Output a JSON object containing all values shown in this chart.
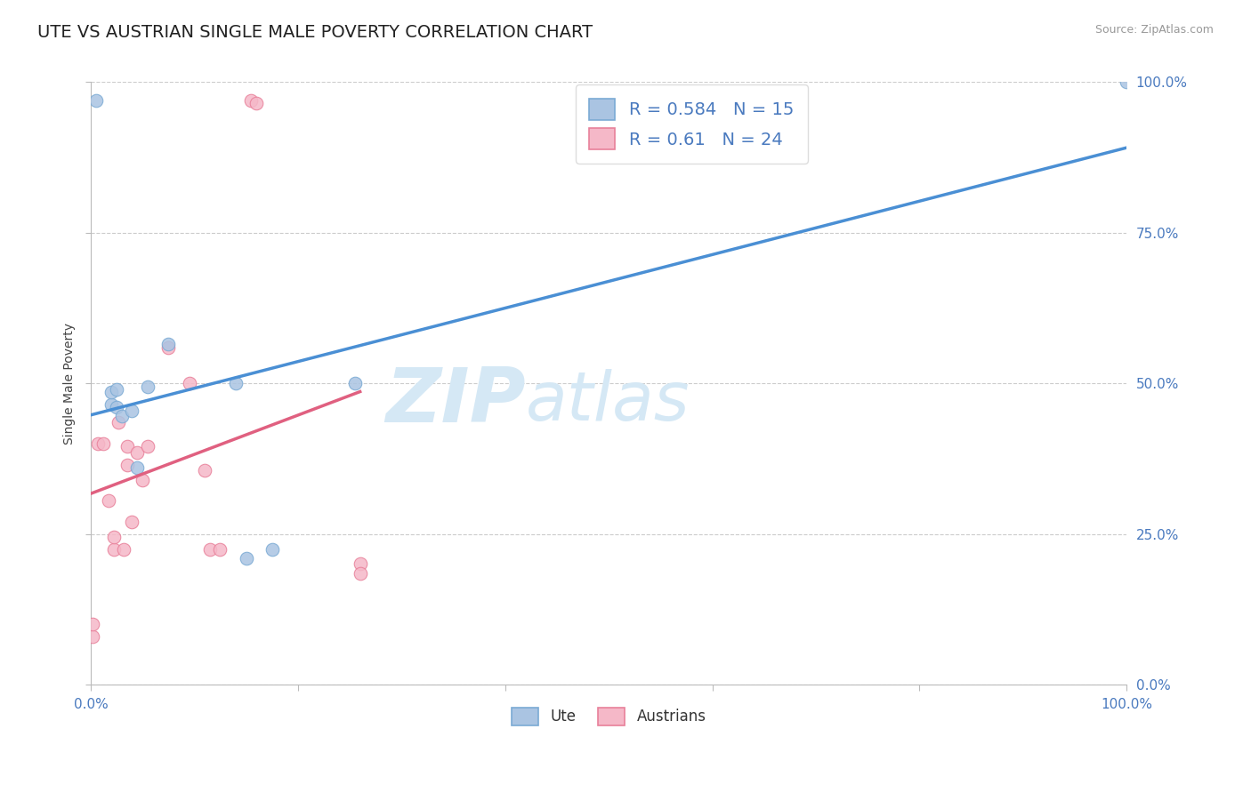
{
  "title": "UTE VS AUSTRIAN SINGLE MALE POVERTY CORRELATION CHART",
  "source": "Source: ZipAtlas.com",
  "ylabel": "Single Male Poverty",
  "xlim": [
    0.0,
    1.0
  ],
  "ylim": [
    0.0,
    1.0
  ],
  "ytick_labels": [
    "0.0%",
    "25.0%",
    "50.0%",
    "75.0%",
    "100.0%"
  ],
  "ytick_positions": [
    0.0,
    0.25,
    0.5,
    0.75,
    1.0
  ],
  "ute_color": "#aac4e2",
  "ute_edge_color": "#7aaad4",
  "austrians_color": "#f5b8c8",
  "austrians_edge_color": "#e8809a",
  "ute_line_color": "#4a8fd4",
  "austrians_line_color": "#e06080",
  "watermark_color": "#d5e8f5",
  "ute_R": 0.584,
  "ute_N": 15,
  "austrians_R": 0.61,
  "austrians_N": 24,
  "ute_x": [
    0.005,
    0.02,
    0.02,
    0.025,
    0.025,
    0.03,
    0.04,
    0.045,
    0.055,
    0.075,
    0.14,
    0.15,
    0.175,
    0.255,
    1.0
  ],
  "ute_y": [
    0.97,
    0.465,
    0.485,
    0.46,
    0.49,
    0.445,
    0.455,
    0.36,
    0.495,
    0.565,
    0.5,
    0.21,
    0.225,
    0.5,
    1.0
  ],
  "austrians_x": [
    0.002,
    0.002,
    0.007,
    0.012,
    0.017,
    0.022,
    0.022,
    0.027,
    0.032,
    0.035,
    0.035,
    0.04,
    0.045,
    0.05,
    0.055,
    0.075,
    0.095,
    0.11,
    0.115,
    0.125,
    0.155,
    0.16,
    0.26,
    0.26
  ],
  "austrians_y": [
    0.08,
    0.1,
    0.4,
    0.4,
    0.305,
    0.225,
    0.245,
    0.435,
    0.225,
    0.365,
    0.395,
    0.27,
    0.385,
    0.34,
    0.395,
    0.56,
    0.5,
    0.355,
    0.225,
    0.225,
    0.97,
    0.965,
    0.2,
    0.185
  ],
  "background_color": "#ffffff",
  "grid_color": "#cccccc",
  "title_fontsize": 14,
  "axis_label_fontsize": 10,
  "tick_fontsize": 11,
  "legend_fontsize": 14,
  "marker_size": 110
}
